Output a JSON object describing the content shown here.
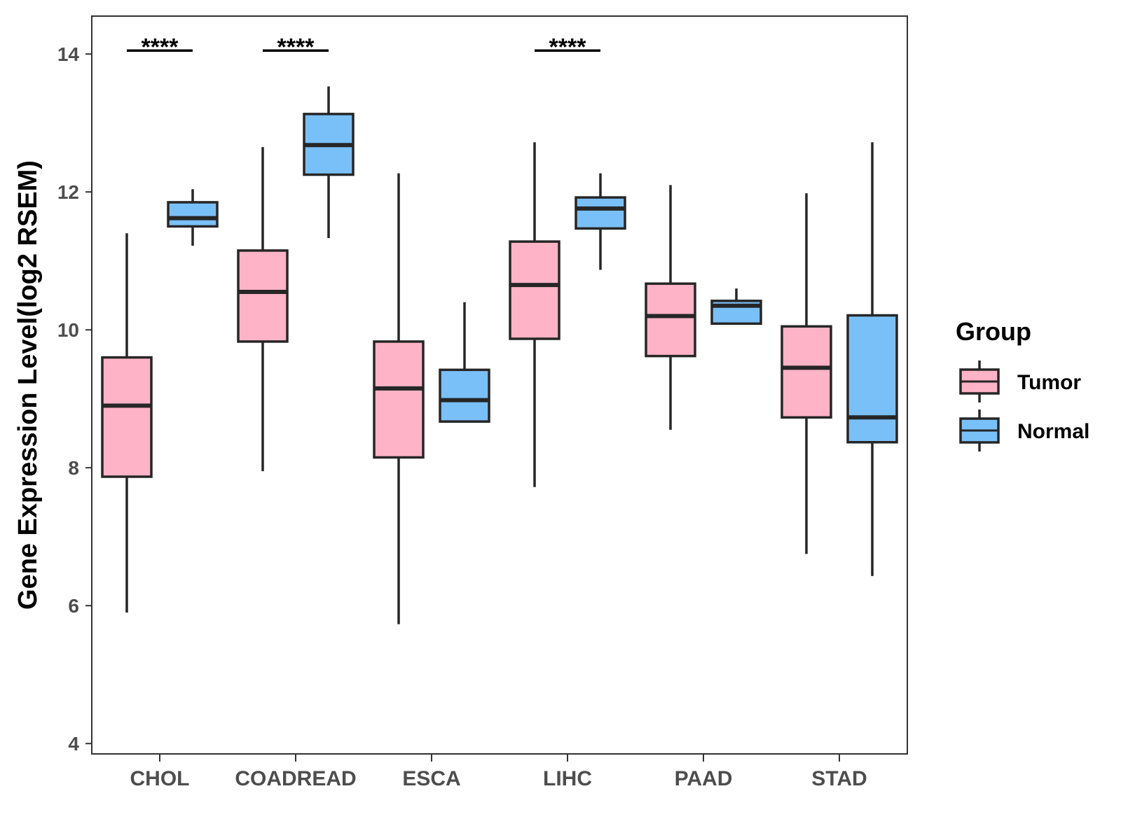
{
  "chart_data": {
    "type": "boxplot",
    "title": "",
    "xlabel": "",
    "ylabel": "Gene Expression Level(log2 RSEM)",
    "ylim": [
      3.85,
      14.55
    ],
    "yticks": [
      4,
      6,
      8,
      10,
      12,
      14
    ],
    "grid": false,
    "legend": {
      "title": "Group",
      "position": "right",
      "entries": [
        "Tumor",
        "Normal"
      ]
    },
    "categories": [
      "CHOL",
      "COADREAD",
      "ESCA",
      "LIHC",
      "PAAD",
      "STAD"
    ],
    "series": [
      {
        "name": "Tumor",
        "color": "#FFB3C6",
        "boxes": [
          {
            "category": "CHOL",
            "whisker_low": 5.9,
            "q1": 7.87,
            "median": 8.9,
            "q3": 9.6,
            "whisker_high": 11.4
          },
          {
            "category": "COADREAD",
            "whisker_low": 7.95,
            "q1": 9.83,
            "median": 10.55,
            "q3": 11.15,
            "whisker_high": 12.65
          },
          {
            "category": "ESCA",
            "whisker_low": 5.73,
            "q1": 8.15,
            "median": 9.15,
            "q3": 9.83,
            "whisker_high": 12.27
          },
          {
            "category": "LIHC",
            "whisker_low": 7.72,
            "q1": 9.87,
            "median": 10.65,
            "q3": 11.28,
            "whisker_high": 12.72
          },
          {
            "category": "PAAD",
            "whisker_low": 8.55,
            "q1": 9.62,
            "median": 10.2,
            "q3": 10.67,
            "whisker_high": 12.1
          },
          {
            "category": "STAD",
            "whisker_low": 6.75,
            "q1": 8.73,
            "median": 9.45,
            "q3": 10.05,
            "whisker_high": 11.98
          }
        ]
      },
      {
        "name": "Normal",
        "color": "#7AC0F8",
        "boxes": [
          {
            "category": "CHOL",
            "whisker_low": 11.22,
            "q1": 11.5,
            "median": 11.62,
            "q3": 11.85,
            "whisker_high": 12.04
          },
          {
            "category": "COADREAD",
            "whisker_low": 11.33,
            "q1": 12.25,
            "median": 12.68,
            "q3": 13.13,
            "whisker_high": 13.53
          },
          {
            "category": "ESCA",
            "whisker_low": 8.67,
            "q1": 8.67,
            "median": 8.98,
            "q3": 9.42,
            "whisker_high": 10.4
          },
          {
            "category": "LIHC",
            "whisker_low": 10.87,
            "q1": 11.47,
            "median": 11.76,
            "q3": 11.92,
            "whisker_high": 12.27
          },
          {
            "category": "PAAD",
            "whisker_low": 10.09,
            "q1": 10.09,
            "median": 10.35,
            "q3": 10.42,
            "whisker_high": 10.6
          },
          {
            "category": "STAD",
            "whisker_low": 6.43,
            "q1": 8.37,
            "median": 8.73,
            "q3": 10.21,
            "whisker_high": 12.72
          }
        ]
      }
    ],
    "annotations": [
      {
        "category": "CHOL",
        "label": "****",
        "y": 14.05
      },
      {
        "category": "COADREAD",
        "label": "****",
        "y": 14.05
      },
      {
        "category": "LIHC",
        "label": "****",
        "y": 14.05
      }
    ]
  }
}
